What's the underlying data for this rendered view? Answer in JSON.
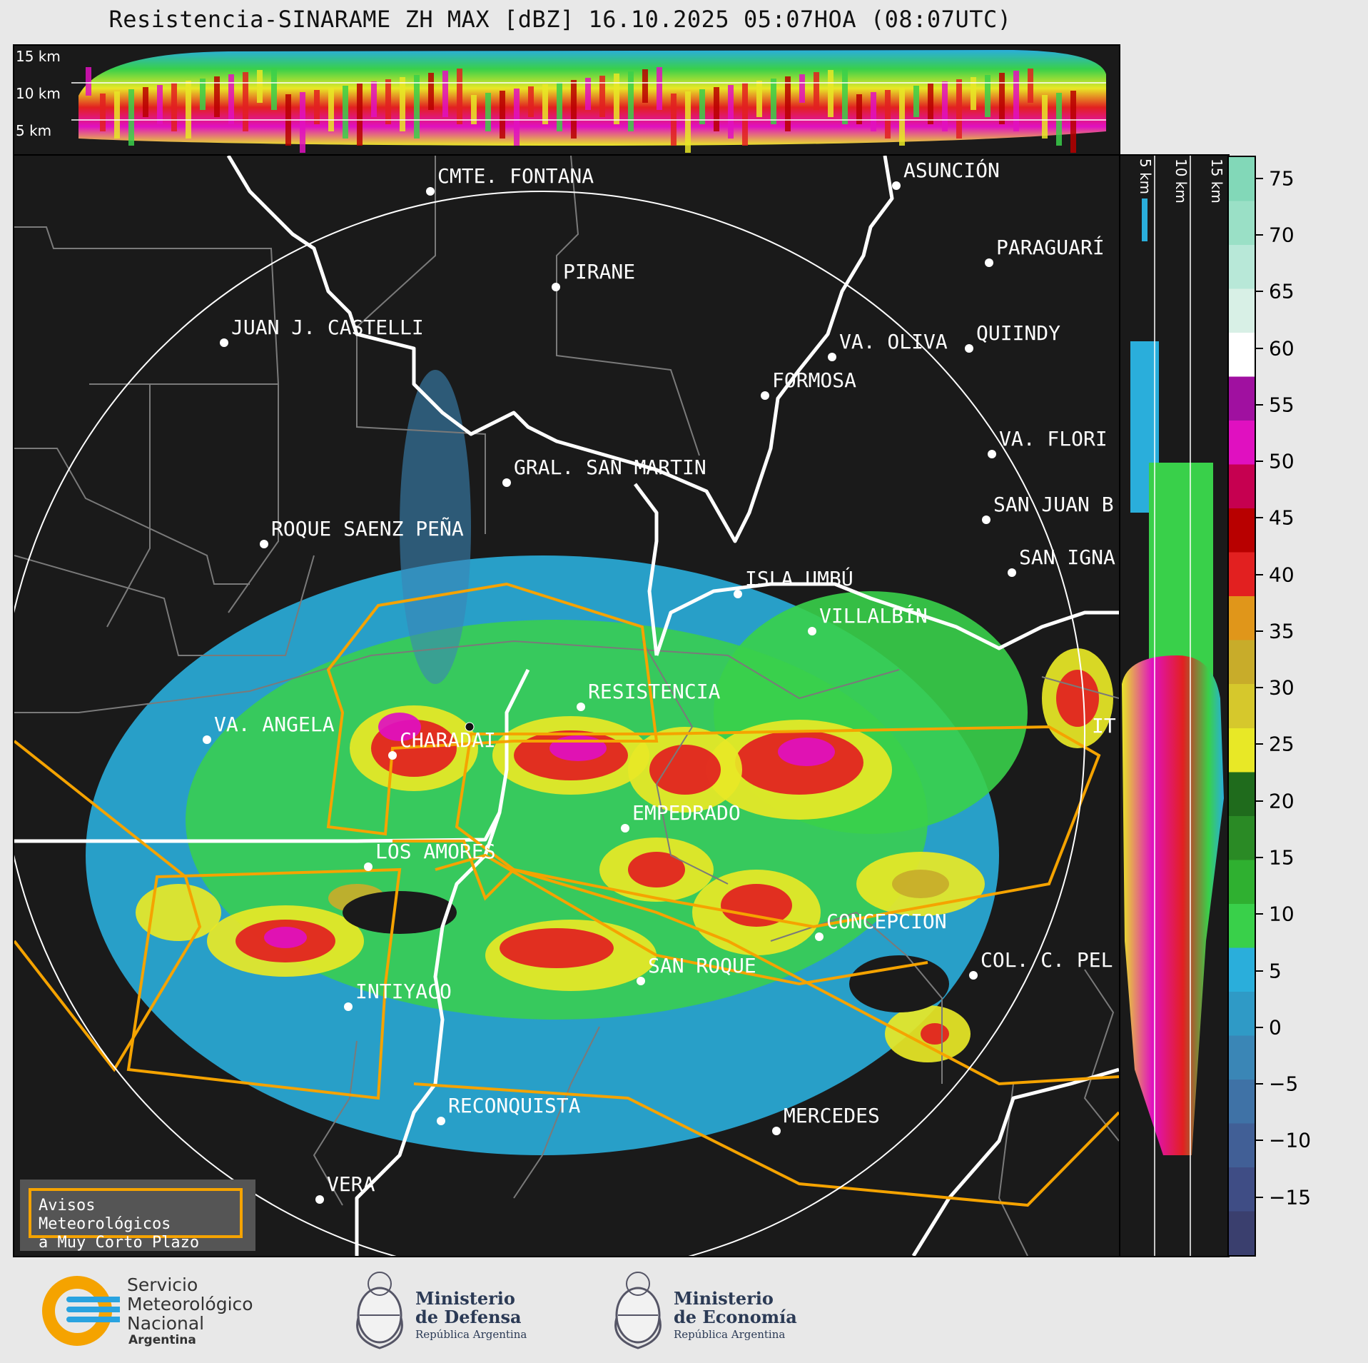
{
  "title": "Resistencia-SINARAME ZH MAX [dBZ] 16.10.2025 05:07HOA (08:07UTC)",
  "top_panel": {
    "height_labels": [
      "15 km",
      "10 km",
      "5 km"
    ]
  },
  "side_panel": {
    "height_labels": [
      "5 km",
      "10 km",
      "15 km"
    ]
  },
  "colorbar": {
    "unit": "dBZ",
    "ticks": [
      "75",
      "70",
      "65",
      "60",
      "55",
      "50",
      "45",
      "40",
      "35",
      "30",
      "25",
      "20",
      "15",
      "10",
      "5",
      "0",
      "−5",
      "−10",
      "−15"
    ],
    "range": [
      -20,
      77
    ],
    "colors": [
      "#3a3f6e",
      "#3f4d85",
      "#415f96",
      "#3f72a6",
      "#3a86b6",
      "#2f9ac6",
      "#2aaedb",
      "#39d04a",
      "#2fb030",
      "#2a8a25",
      "#1f6b1c",
      "#e8e826",
      "#d6c82c",
      "#c8ac2a",
      "#e0961a",
      "#e22020",
      "#b80000",
      "#c60050",
      "#e010c0",
      "#a010a0",
      "#ffffff",
      "#d8f0e6",
      "#b8e8d8",
      "#9ae0c6",
      "#82d8b8"
    ]
  },
  "cities": [
    {
      "name": "CMTE. FONTANA"
    },
    {
      "name": "ASUNCIÓN"
    },
    {
      "name": "PIRANE"
    },
    {
      "name": "PARAGUARÍ"
    },
    {
      "name": "JUAN J. CASTELLI"
    },
    {
      "name": "VA. OLIVA"
    },
    {
      "name": "QUIINDY"
    },
    {
      "name": "FORMOSA"
    },
    {
      "name": "VA. FLORI"
    },
    {
      "name": "GRAL. SAN MARTIN"
    },
    {
      "name": "SAN JUAN B"
    },
    {
      "name": "ROQUE SAENZ PEÑA"
    },
    {
      "name": "SAN IGNA"
    },
    {
      "name": "ISLA UMBÚ"
    },
    {
      "name": "VILLALBÍN"
    },
    {
      "name": "RESISTENCIA"
    },
    {
      "name": "VA. ANGELA"
    },
    {
      "name": "CHARADAI"
    },
    {
      "name": "IT"
    },
    {
      "name": "EMPEDRADO"
    },
    {
      "name": "LOS AMORES"
    },
    {
      "name": "CONCEPCION"
    },
    {
      "name": "COL. C. PEL"
    },
    {
      "name": "SAN ROQUE"
    },
    {
      "name": "INTIYACO"
    },
    {
      "name": "RECONQUISTA"
    },
    {
      "name": "MERCEDES"
    },
    {
      "name": "VERA"
    }
  ],
  "legend": {
    "line1": "Avisos Meteorológicos",
    "line2": "a Muy Corto Plazo"
  },
  "footer": {
    "smn": [
      "Servicio",
      "Meteorológico",
      "Nacional",
      "Argentina"
    ],
    "defensa": [
      "Ministerio",
      "de Defensa",
      "República Argentina"
    ],
    "economia": [
      "Ministerio",
      "de Economía",
      "República Argentina"
    ]
  }
}
